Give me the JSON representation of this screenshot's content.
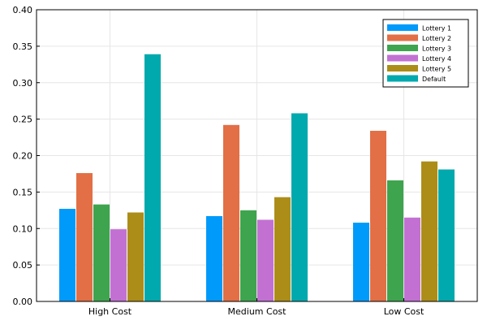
{
  "chart_data": {
    "type": "bar",
    "categories": [
      "High Cost",
      "Medium Cost",
      "Low Cost"
    ],
    "series": [
      {
        "name": "Lottery 1",
        "color": "#009AFA",
        "values": [
          0.127,
          0.117,
          0.108
        ]
      },
      {
        "name": "Lottery 2",
        "color": "#E26F46",
        "values": [
          0.176,
          0.242,
          0.234
        ]
      },
      {
        "name": "Lottery 3",
        "color": "#3EA44E",
        "values": [
          0.133,
          0.125,
          0.166
        ]
      },
      {
        "name": "Lottery 4",
        "color": "#C271D2",
        "values": [
          0.099,
          0.112,
          0.115
        ]
      },
      {
        "name": "Lottery 5",
        "color": "#AC8D18",
        "values": [
          0.122,
          0.143,
          0.192
        ]
      },
      {
        "name": "Default",
        "color": "#00A9AD",
        "values": [
          0.339,
          0.258,
          0.181
        ]
      }
    ],
    "title": "",
    "xlabel": "",
    "ylabel": "",
    "ylim": [
      0,
      0.4
    ],
    "yticks": [
      "0.00",
      "0.05",
      "0.10",
      "0.15",
      "0.20",
      "0.25",
      "0.30",
      "0.35",
      "0.40"
    ],
    "grid": true,
    "legend_position": "top-right"
  }
}
